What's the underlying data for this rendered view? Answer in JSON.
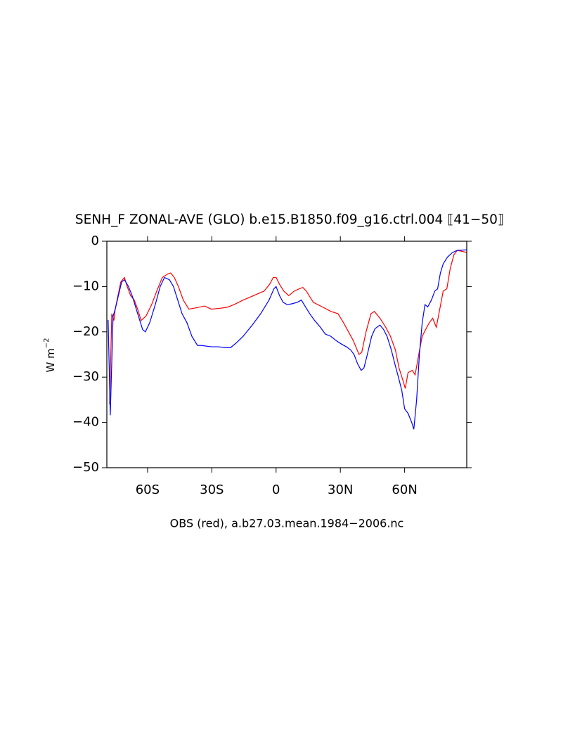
{
  "chart_data": {
    "type": "line",
    "title": "SENH_F ZONAL-AVE (GLO) b.e15.B1850.f09_g16.ctrl.004 ⟦41−50⟧",
    "subtitle": "OBS (red), a.b27.03.mean.1984−2006.nc",
    "ylabel": "W m",
    "ylabel_sup": "−2",
    "xlim": [
      -79,
      89
    ],
    "ylim": [
      -50,
      0
    ],
    "xticks": [
      {
        "value": -60,
        "label": "60S"
      },
      {
        "value": -30,
        "label": "30S"
      },
      0,
      {
        "value": 30,
        "label": "30N"
      },
      {
        "value": 60,
        "label": "60N"
      }
    ],
    "yticks": [
      {
        "value": -50,
        "label": "−50"
      },
      {
        "value": -40,
        "label": "−40"
      },
      {
        "value": -30,
        "label": "−30"
      },
      {
        "value": -20,
        "label": "−20"
      },
      {
        "value": -10,
        "label": "−10"
      },
      0
    ],
    "series": [
      {
        "color": "#ff0000",
        "x": [
          -77.7,
          -76.7,
          -75.7,
          -75.1,
          -73.8,
          -72.5,
          -70.8,
          -69.5,
          -67.9,
          -66.2,
          -64.6,
          -63,
          -60.7,
          -58.1,
          -55.7,
          -53.1,
          -50.5,
          -49.2,
          -47.5,
          -45.6,
          -43.3,
          -40.7,
          -37.4,
          -33.4,
          -30.2,
          -26.2,
          -23,
          -19.7,
          -15.4,
          -10.5,
          -5.6,
          -3,
          -1.3,
          0,
          1.6,
          3.6,
          5.9,
          8.5,
          10.8,
          12.5,
          14.1,
          17.4,
          21.6,
          25.6,
          28.9,
          31.5,
          33.8,
          36.1,
          38.7,
          40,
          42,
          44.3,
          45.9,
          48.5,
          51.2,
          53.4,
          55.7,
          57.4,
          59.4,
          60.3,
          61.6,
          63.6,
          64.9,
          66.6,
          68.2,
          69.8,
          71.5,
          73.1,
          74.8,
          76.4,
          78,
          79.7,
          81.3,
          83,
          84.6,
          89.2
        ],
        "values": [
          -36,
          -16,
          -17.5,
          -15,
          -12,
          -9,
          -8,
          -10,
          -12,
          -13,
          -15,
          -17.5,
          -16.5,
          -14,
          -11,
          -8,
          -7.2,
          -7,
          -8,
          -10,
          -13,
          -15,
          -14.7,
          -14.3,
          -15,
          -14.8,
          -14.6,
          -14,
          -13,
          -12,
          -11,
          -9.5,
          -8,
          -8,
          -9.5,
          -11,
          -12,
          -11,
          -10.5,
          -10.2,
          -11,
          -13.5,
          -14.5,
          -15.5,
          -16,
          -18,
          -20,
          -22,
          -25,
          -24.5,
          -20,
          -16,
          -15.5,
          -17,
          -19,
          -21,
          -24,
          -28,
          -31,
          -32.5,
          -29,
          -28.5,
          -29.5,
          -25,
          -21,
          -19.5,
          -18,
          -17,
          -19,
          -15,
          -11,
          -10.5,
          -6,
          -3,
          -2,
          -2.5
        ]
      },
      {
        "color": "#0000ff",
        "x": [
          -78.4,
          -77.4,
          -76.1,
          -75.1,
          -72.1,
          -70.8,
          -68.9,
          -67.2,
          -64.6,
          -62.3,
          -61,
          -59,
          -56.4,
          -54.1,
          -52.1,
          -49.8,
          -47.9,
          -45.9,
          -43.9,
          -41.6,
          -39.3,
          -36.7,
          -35.1,
          -30.2,
          -26.9,
          -23.6,
          -21.3,
          -18.7,
          -15.4,
          -11.1,
          -7.2,
          -3.3,
          -1,
          0,
          1.6,
          3.3,
          5.2,
          7.5,
          9.8,
          11.8,
          13.1,
          15.7,
          18,
          20.7,
          23,
          25.6,
          28.2,
          30.5,
          32.8,
          34.8,
          36.4,
          38,
          39.7,
          41,
          42.6,
          44.6,
          46.2,
          48.5,
          50.2,
          51.8,
          53.8,
          55.4,
          57.1,
          58.7,
          60,
          61.6,
          63.3,
          64.3,
          65.6,
          66.9,
          68.2,
          69.5,
          70.8,
          72.5,
          74.1,
          75.4,
          76.7,
          78,
          80,
          82.3,
          84.6,
          89.2
        ],
        "values": [
          -17.4,
          -38.4,
          -16.6,
          -15,
          -9,
          -8.5,
          -10,
          -12,
          -16,
          -19.5,
          -20,
          -18,
          -14,
          -10,
          -8,
          -8.5,
          -10,
          -13,
          -16,
          -18,
          -21,
          -23,
          -23,
          -23.3,
          -23.3,
          -23.5,
          -23.5,
          -22.5,
          -21,
          -18.5,
          -16,
          -13,
          -10.5,
          -10,
          -12,
          -13.5,
          -14,
          -13.8,
          -13.5,
          -13,
          -14,
          -16,
          -17.5,
          -19,
          -20.5,
          -21,
          -22,
          -22.7,
          -23.3,
          -24,
          -25,
          -27,
          -28.5,
          -28,
          -25,
          -21,
          -19.3,
          -18.5,
          -19.5,
          -21,
          -24,
          -27,
          -30,
          -33,
          -37,
          -38,
          -40,
          -41.5,
          -35,
          -25,
          -18,
          -14,
          -14.5,
          -13,
          -11,
          -10.5,
          -7,
          -5,
          -3.5,
          -2.5,
          -2,
          -1.9
        ]
      }
    ]
  }
}
